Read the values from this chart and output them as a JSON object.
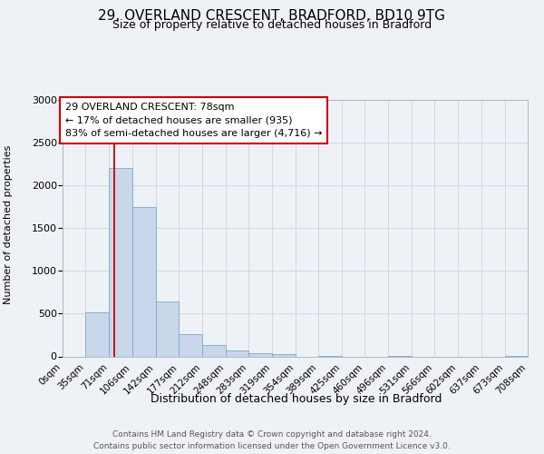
{
  "title": "29, OVERLAND CRESCENT, BRADFORD, BD10 9TG",
  "subtitle": "Size of property relative to detached houses in Bradford",
  "xlabel": "Distribution of detached houses by size in Bradford",
  "ylabel": "Number of detached properties",
  "bar_color": "#c8d8ea",
  "bar_edgecolor": "#7aaac8",
  "background_color": "#eef2f7",
  "plot_bg_color": "#eef2f7",
  "bin_edges": [
    0,
    35,
    71,
    106,
    142,
    177,
    212,
    248,
    283,
    319,
    354,
    389,
    425,
    460,
    496,
    531,
    566,
    602,
    637,
    673,
    708
  ],
  "bar_heights": [
    0,
    510,
    2200,
    1750,
    640,
    260,
    130,
    70,
    35,
    25,
    0,
    5,
    0,
    0,
    5,
    0,
    0,
    0,
    0,
    5
  ],
  "tick_labels": [
    "0sqm",
    "35sqm",
    "71sqm",
    "106sqm",
    "142sqm",
    "177sqm",
    "212sqm",
    "248sqm",
    "283sqm",
    "319sqm",
    "354sqm",
    "389sqm",
    "425sqm",
    "460sqm",
    "496sqm",
    "531sqm",
    "566sqm",
    "602sqm",
    "637sqm",
    "673sqm",
    "708sqm"
  ],
  "ylim": [
    0,
    3000
  ],
  "yticks": [
    0,
    500,
    1000,
    1500,
    2000,
    2500,
    3000
  ],
  "property_line_x": 78,
  "annotation_box_text": "29 OVERLAND CRESCENT: 78sqm\n← 17% of detached houses are smaller (935)\n83% of semi-detached houses are larger (4,716) →",
  "footer_line1": "Contains HM Land Registry data © Crown copyright and database right 2024.",
  "footer_line2": "Contains public sector information licensed under the Open Government Licence v3.0.",
  "grid_color": "#d0d8e0",
  "vline_color": "#cc0000",
  "box_edgecolor": "#cc0000",
  "box_facecolor": "#ffffff",
  "title_fontsize": 11,
  "subtitle_fontsize": 9,
  "ylabel_fontsize": 8,
  "xlabel_fontsize": 9,
  "tick_fontsize": 7.5,
  "ytick_fontsize": 8,
  "annotation_fontsize": 8,
  "footer_fontsize": 6.5
}
